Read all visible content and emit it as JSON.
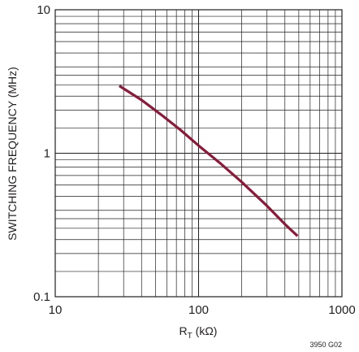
{
  "chart_data": {
    "type": "line",
    "xscale": "log",
    "yscale": "log",
    "xlim": [
      10,
      1000
    ],
    "ylim": [
      0.1,
      10
    ],
    "xlabel_main": "R",
    "xlabel_sub": "T",
    "xlabel_unit": " (kΩ)",
    "ylabel": "SWITCHING FREQUENCY (MHz)",
    "x_tick_labels": [
      "10",
      "100",
      "1000"
    ],
    "y_tick_labels": [
      "0.1",
      "1",
      "10"
    ],
    "grid": true,
    "series": [
      {
        "color": "#8b1a3a",
        "points": [
          {
            "x": 28,
            "y": 2.95
          },
          {
            "x": 40,
            "y": 2.35
          },
          {
            "x": 55,
            "y": 1.85
          },
          {
            "x": 75,
            "y": 1.45
          },
          {
            "x": 100,
            "y": 1.13
          },
          {
            "x": 140,
            "y": 0.86
          },
          {
            "x": 200,
            "y": 0.63
          },
          {
            "x": 300,
            "y": 0.43
          },
          {
            "x": 400,
            "y": 0.32
          },
          {
            "x": 490,
            "y": 0.265
          }
        ]
      }
    ]
  },
  "figure_id": "3950 G02"
}
